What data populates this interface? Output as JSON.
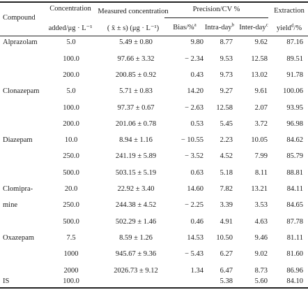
{
  "header": {
    "compound": "Compound",
    "concentration_line1": "Concentration",
    "concentration_line2": "added/μg · L⁻¹",
    "measured_line1": "Measured concentration",
    "measured_line2": "( x̄ ± s) (μg · L⁻¹)",
    "precision_group": "Precision/CV %",
    "bias": "Bias/%",
    "bias_sup": "a",
    "intraday": "Intra-day",
    "intraday_sup": "b",
    "interday": "Inter-day",
    "interday_sup": "c",
    "extraction_line1": "Extraction",
    "extraction_line2": "yield",
    "extraction_sup": "d",
    "extraction_suffix": "/%"
  },
  "rows": [
    {
      "compound": "Alprazolam",
      "conc": "5.0",
      "measured": "5.49 ± 0.80",
      "bias": "9.80",
      "intra": "8.77",
      "inter": "9.62",
      "yield": "87.16"
    },
    {
      "compound": "",
      "conc": "100.0",
      "measured": "97.66 ± 3.32",
      "bias": "− 2.34",
      "intra": "9.53",
      "inter": "12.58",
      "yield": "89.51"
    },
    {
      "compound": "",
      "conc": "200.0",
      "measured": "200.85 ± 0.92",
      "bias": "0.43",
      "intra": "9.73",
      "inter": "13.02",
      "yield": "91.78"
    },
    {
      "compound": "Clonazepam",
      "conc": "5.0",
      "measured": "5.71 ± 0.83",
      "bias": "14.20",
      "intra": "9.27",
      "inter": "9.61",
      "yield": "100.06"
    },
    {
      "compound": "",
      "conc": "100.0",
      "measured": "97.37 ± 0.67",
      "bias": "− 2.63",
      "intra": "12.58",
      "inter": "2.07",
      "yield": "93.95"
    },
    {
      "compound": "",
      "conc": "200.0",
      "measured": "201.06 ± 0.78",
      "bias": "0.53",
      "intra": "5.45",
      "inter": "3.72",
      "yield": "96.98"
    },
    {
      "compound": "Diazepam",
      "conc": "10.0",
      "measured": "8.94 ± 1.16",
      "bias": "− 10.55",
      "intra": "2.23",
      "inter": "10.05",
      "yield": "84.62"
    },
    {
      "compound": "",
      "conc": "250.0",
      "measured": "241.19 ± 5.89",
      "bias": "− 3.52",
      "intra": "4.52",
      "inter": "7.99",
      "yield": "85.79"
    },
    {
      "compound": "",
      "conc": "500.0",
      "measured": "503.15 ± 5.19",
      "bias": "0.63",
      "intra": "5.18",
      "inter": "8.11",
      "yield": "88.81"
    },
    {
      "compound": "Clomipra-",
      "conc": "20.0",
      "measured": "22.92 ± 3.40",
      "bias": "14.60",
      "intra": "7.82",
      "inter": "13.21",
      "yield": "84.11"
    },
    {
      "compound": "mine",
      "conc": "250.0",
      "measured": "244.38 ± 4.52",
      "bias": "− 2.25",
      "intra": "3.39",
      "inter": "3.53",
      "yield": "84.65"
    },
    {
      "compound": "",
      "conc": "500.0",
      "measured": "502.29 ± 1.46",
      "bias": "0.46",
      "intra": "4.91",
      "inter": "4.63",
      "yield": "87.78"
    },
    {
      "compound": "Oxazepam",
      "conc": "7.5",
      "measured": "8.59 ± 1.26",
      "bias": "14.53",
      "intra": "10.50",
      "inter": "9.46",
      "yield": "81.11"
    },
    {
      "compound": "",
      "conc": "1000",
      "measured": "945.67 ± 9.36",
      "bias": "− 5.43",
      "intra": "6.27",
      "inter": "9.02",
      "yield": "81.60"
    },
    {
      "compound": "",
      "conc": "2000",
      "measured": "2026.73 ± 9.12",
      "bias": "1.34",
      "intra": "6.47",
      "inter": "8.73",
      "yield": "86.96"
    },
    {
      "compound": "IS",
      "conc": "100.0",
      "measured": "",
      "bias": "",
      "intra": "5.38",
      "inter": "5.60",
      "yield": "84.10"
    }
  ]
}
